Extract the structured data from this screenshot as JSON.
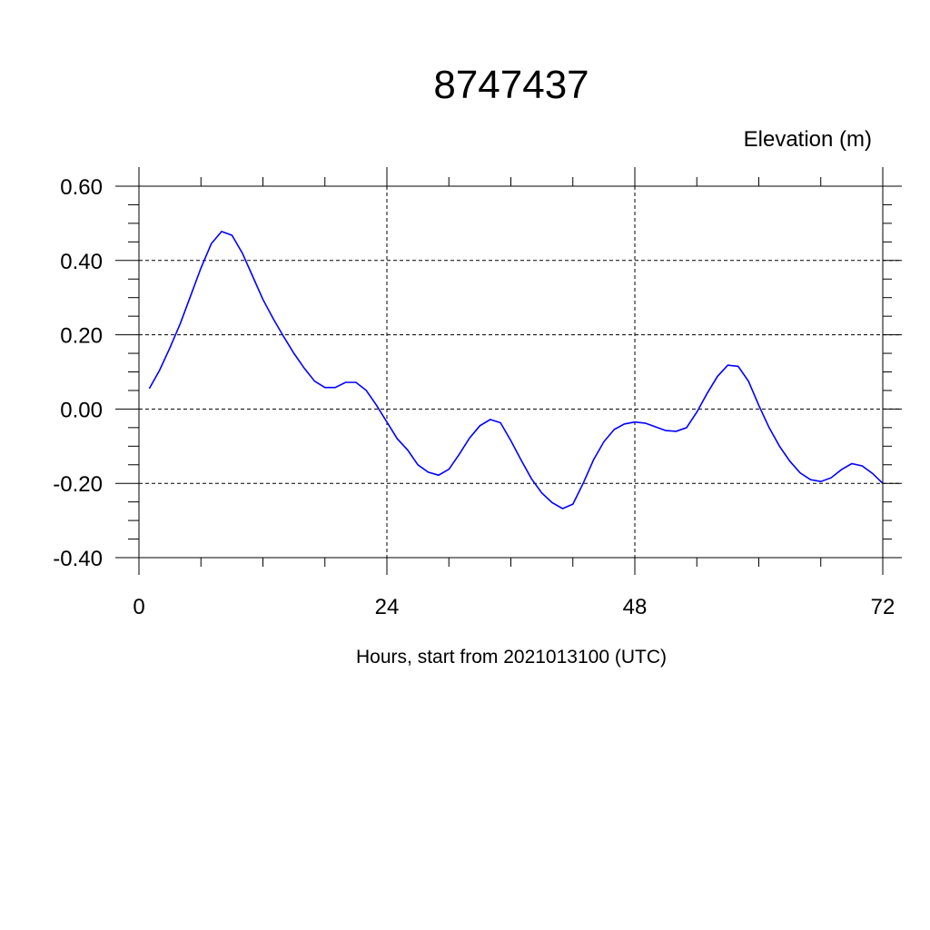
{
  "chart_data": {
    "type": "line",
    "title": "8747437",
    "ylabel": "Elevation (m)",
    "xlabel": "Hours, start from 2021013100 (UTC)",
    "xlim": [
      0,
      72
    ],
    "ylim": [
      -0.4,
      0.6
    ],
    "x_major_ticks": [
      0,
      24,
      48,
      72
    ],
    "x_tick_labels": [
      "0",
      "24",
      "48",
      "72"
    ],
    "x_minor_step": 6,
    "y_major_ticks": [
      -0.4,
      -0.2,
      0.0,
      0.2,
      0.4,
      0.6
    ],
    "y_tick_labels": [
      "-0.40",
      "-0.20",
      "0.00",
      "0.20",
      "0.40",
      "0.60"
    ],
    "y_minor_step": 0.05,
    "grid": true,
    "series_color": "#0000ff",
    "series": [
      {
        "x": [
          1,
          2,
          3,
          4,
          5,
          6,
          7,
          8,
          9,
          10,
          11,
          12,
          13,
          14,
          15,
          16,
          17,
          18,
          19,
          20,
          21,
          22,
          23,
          24,
          25,
          26,
          27,
          28,
          29,
          30,
          31,
          32,
          33,
          34,
          35,
          36,
          37,
          38,
          39,
          40,
          41,
          42,
          43,
          44,
          45,
          46,
          47,
          48,
          49,
          50,
          51,
          52,
          53,
          54,
          55,
          56,
          57,
          58,
          59,
          60,
          61,
          62,
          63,
          64,
          65,
          66,
          67,
          68,
          69,
          70,
          71,
          72
        ],
        "values": [
          0.055,
          0.105,
          0.165,
          0.23,
          0.305,
          0.38,
          0.445,
          0.478,
          0.468,
          0.42,
          0.358,
          0.295,
          0.243,
          0.195,
          0.15,
          0.11,
          0.075,
          0.058,
          0.058,
          0.072,
          0.072,
          0.05,
          0.01,
          -0.035,
          -0.08,
          -0.11,
          -0.15,
          -0.17,
          -0.178,
          -0.162,
          -0.122,
          -0.078,
          -0.045,
          -0.028,
          -0.037,
          -0.085,
          -0.138,
          -0.188,
          -0.226,
          -0.252,
          -0.268,
          -0.256,
          -0.2,
          -0.137,
          -0.088,
          -0.055,
          -0.04,
          -0.035,
          -0.038,
          -0.048,
          -0.058,
          -0.06,
          -0.05,
          -0.008,
          0.042,
          0.088,
          0.118,
          0.115,
          0.075,
          0.01,
          -0.05,
          -0.1,
          -0.14,
          -0.172,
          -0.19,
          -0.195,
          -0.185,
          -0.163,
          -0.147,
          -0.153,
          -0.173,
          -0.2
        ]
      }
    ]
  }
}
